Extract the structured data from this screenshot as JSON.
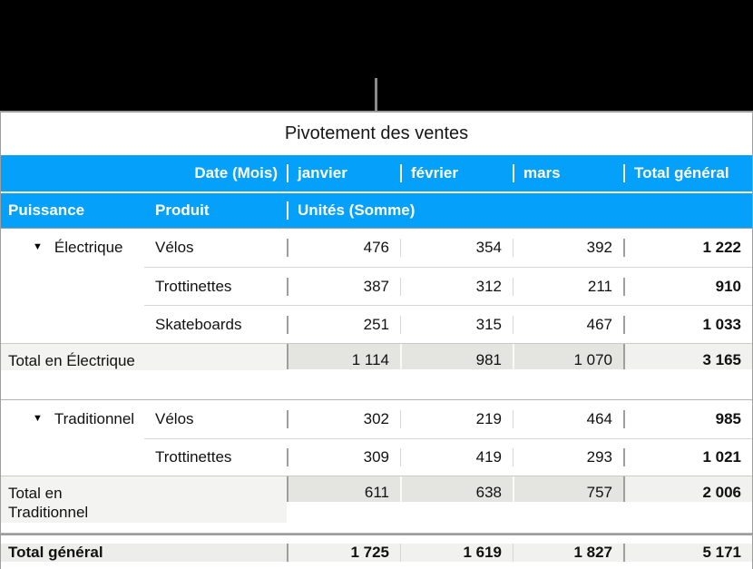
{
  "icons": {
    "disclosure": "▼"
  },
  "colors": {
    "header_blue": "#05a0fa",
    "subtotal_gray": "#e4e4e1",
    "subtotal_label_gray": "#f3f3f1",
    "grand_row_gray": "#ededeb",
    "banner_black": "#000000"
  },
  "table": {
    "title": "Pivotement des ventes",
    "header": {
      "date_label": "Date (Mois)",
      "months": [
        "janvier",
        "février",
        "mars"
      ],
      "grand_total_label": "Total général",
      "row_field_label": "Puissance",
      "product_label": "Produit",
      "values_label": "Unités (Somme)"
    },
    "groups": [
      {
        "name": "Électrique",
        "rows": [
          {
            "product": "Vélos",
            "values": [
              "476",
              "354",
              "392"
            ],
            "total": "1 222"
          },
          {
            "product": "Trottinettes",
            "values": [
              "387",
              "312",
              "211"
            ],
            "total": "910"
          },
          {
            "product": "Skateboards",
            "values": [
              "251",
              "315",
              "467"
            ],
            "total": "1 033"
          }
        ],
        "total_label": "Total en Électrique",
        "total_values": [
          "1 114",
          "981",
          "1 070"
        ],
        "total": "3 165"
      },
      {
        "name": "Traditionnel",
        "rows": [
          {
            "product": "Vélos",
            "values": [
              "302",
              "219",
              "464"
            ],
            "total": "985"
          },
          {
            "product": "Trottinettes",
            "values": [
              "309",
              "419",
              "293"
            ],
            "total": "1 021"
          }
        ],
        "total_label": "Total en Traditionnel",
        "total_values": [
          "611",
          "638",
          "757"
        ],
        "total": "2 006"
      }
    ],
    "grand_total": {
      "label": "Total général",
      "values": [
        "1 725",
        "1 619",
        "1 827"
      ],
      "total": "5 171"
    }
  }
}
